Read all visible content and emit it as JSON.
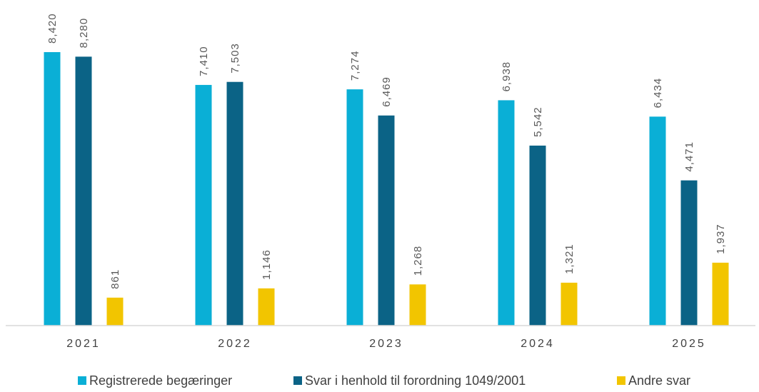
{
  "chart_data": {
    "type": "bar",
    "categories": [
      "2021",
      "2022",
      "2023",
      "2024",
      "2025"
    ],
    "series": [
      {
        "name": "Registrerede begæringer",
        "color": "#0AAFD6",
        "values": [
          8420,
          7410,
          7274,
          6938,
          6434
        ],
        "labels": [
          "8,420",
          "7,410",
          "7,274",
          "6,938",
          "6,434"
        ]
      },
      {
        "name": "Svar i henhold til forordning 1049/2001",
        "color": "#0B6386",
        "values": [
          8280,
          7503,
          6469,
          5542,
          4471
        ],
        "labels": [
          "8,280",
          "7,503",
          "6,469",
          "5,542",
          "4,471"
        ]
      },
      {
        "name": "Andre svar",
        "color": "#F2C500",
        "values": [
          861,
          1146,
          1268,
          1321,
          1937
        ],
        "labels": [
          "861",
          "1,146",
          "1,268",
          "1,321",
          "1,937"
        ]
      }
    ],
    "title": "",
    "xlabel": "",
    "ylabel": "",
    "ylim": [
      0,
      9000
    ],
    "grid": false,
    "legend": "bottom",
    "data_labels": "rotated-vertical"
  }
}
